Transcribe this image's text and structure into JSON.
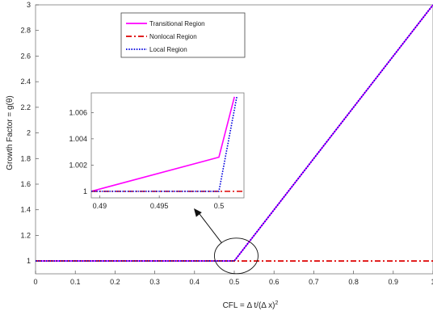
{
  "chart_data": [
    {
      "id": "main",
      "type": "line",
      "xlabel": "CFL = Δ t/(Δ x)",
      "xlabel_sup": "2",
      "ylabel": "Growth Factor = g(θ)",
      "xlim": [
        0,
        1
      ],
      "ylim": [
        0.9,
        3.0
      ],
      "x_ticks": [
        0,
        0.1,
        0.2,
        0.3,
        0.4,
        0.5,
        0.6,
        0.7,
        0.8,
        0.9,
        1
      ],
      "x_tick_labels": [
        "0",
        "0.1",
        "0.2",
        "0.3",
        "0.4",
        "0.5",
        "0.6",
        "0.7",
        "0.8",
        "0.9",
        "1"
      ],
      "y_ticks": [
        1,
        1.2,
        1.4,
        1.6,
        1.8,
        2,
        2.2,
        2.4,
        2.6,
        2.8,
        3
      ],
      "y_tick_labels": [
        "1",
        "1.2",
        "1.4",
        "1.6",
        "1.8",
        "2",
        "2.2",
        "2.4",
        "2.6",
        "2.8",
        "3"
      ],
      "grid": false,
      "legend_position": "top-center",
      "series": [
        {
          "name": "Transitional Region",
          "color": "#ff00ff",
          "style": "solid",
          "x": [
            0,
            0.5,
            1.0
          ],
          "y": [
            1,
            1,
            3
          ]
        },
        {
          "name": "Nonlocal Region",
          "color": "#dd0000",
          "style": "dashdot",
          "x": [
            0,
            1.0
          ],
          "y": [
            1,
            1
          ]
        },
        {
          "name": "Local Region",
          "color": "#0000dd",
          "style": "dotted",
          "x": [
            0,
            0.5,
            1.0
          ],
          "y": [
            1,
            1,
            3
          ]
        }
      ],
      "annotations": [
        {
          "type": "ellipse",
          "cx": 0.505,
          "cy": 1.04,
          "description": "circled region magnified in inset"
        },
        {
          "type": "arrow",
          "description": "arrow from circled region to inset"
        }
      ]
    },
    {
      "id": "inset",
      "type": "line",
      "xlim": [
        0.4893,
        0.5021
      ],
      "ylim": [
        0.9995,
        1.0075
      ],
      "x_ticks": [
        0.49,
        0.495,
        0.5
      ],
      "x_tick_labels": [
        "0.49",
        "0.495",
        "0.5"
      ],
      "y_ticks": [
        1,
        1.002,
        1.004,
        1.006
      ],
      "y_tick_labels": [
        "1",
        "1.002",
        "1.004",
        "1.006"
      ],
      "grid": false,
      "series": [
        {
          "name": "Transitional Region",
          "color": "#ff00ff",
          "style": "solid",
          "x": [
            0.4893,
            0.5,
            0.5013
          ],
          "y": [
            1.0,
            1.0026,
            1.0072
          ]
        },
        {
          "name": "Nonlocal Region",
          "color": "#dd0000",
          "style": "dashdot",
          "x": [
            0.4893,
            0.5021
          ],
          "y": [
            1.0,
            1.0
          ]
        },
        {
          "name": "Local Region",
          "color": "#0000dd",
          "style": "dotted",
          "x": [
            0.4893,
            0.5,
            0.5015
          ],
          "y": [
            1.0,
            1.0,
            1.0072
          ]
        }
      ]
    }
  ]
}
